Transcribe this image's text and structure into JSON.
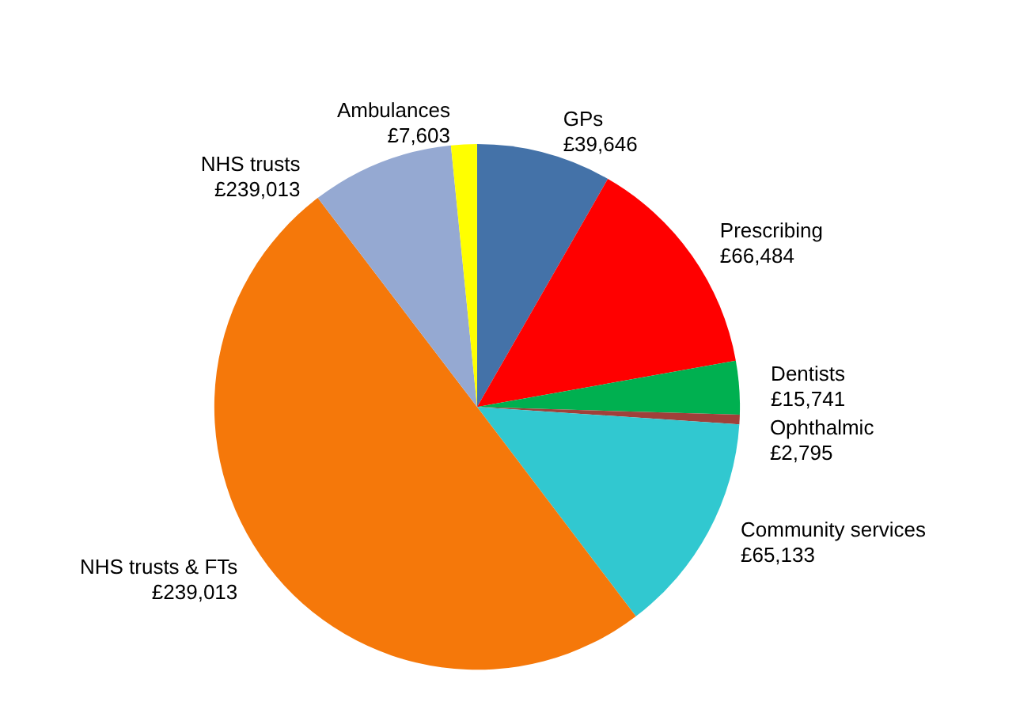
{
  "chart_data": {
    "type": "pie",
    "categories": [
      "GPs",
      "Prescribing",
      "Dentists",
      "Ophthalmic",
      "Community services",
      "NHS trusts & FTs",
      "NHS trusts",
      "Ambulances"
    ],
    "values": [
      39646,
      66484,
      15741,
      2795,
      65133,
      239013,
      42000,
      7603
    ],
    "value_labels": [
      "£39,646",
      "£66,484",
      "£15,741",
      "£2,795",
      "£65,133",
      "£239,013",
      null,
      "£7,603"
    ],
    "annotations": [
      {
        "text": "£239,013",
        "x": "NHS trusts"
      }
    ],
    "colors": [
      "#4472a8",
      "#ff0000",
      "#00b050",
      "#a0403a",
      "#31c8d0",
      "#f5780a",
      "#95a9d2",
      "#ffff00"
    ]
  }
}
